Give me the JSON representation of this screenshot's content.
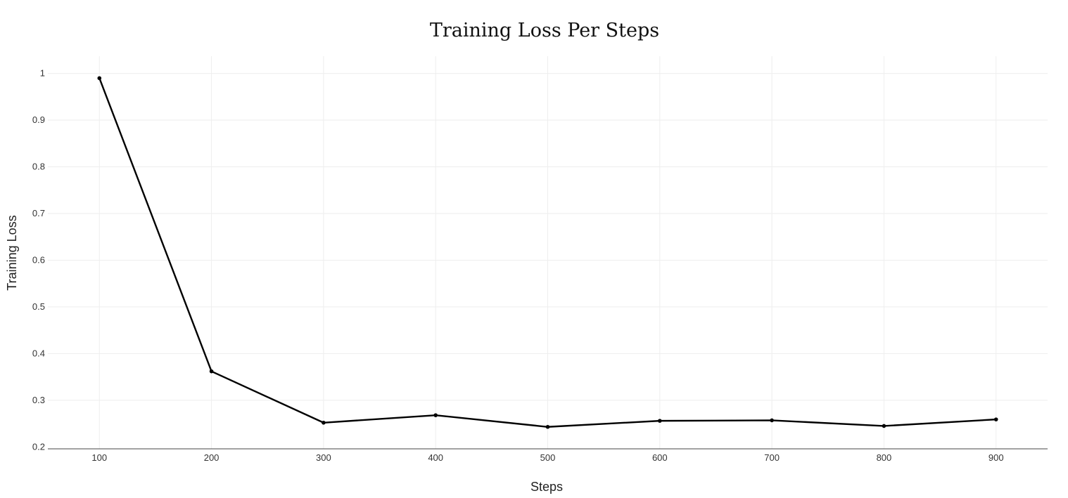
{
  "chart_data": {
    "type": "line",
    "title": "Training Loss Per Steps",
    "xlabel": "Steps",
    "ylabel": "Training Loss",
    "x": [
      100,
      200,
      300,
      400,
      500,
      600,
      700,
      800,
      900
    ],
    "series": [
      {
        "values": [
          0.99,
          0.362,
          0.252,
          0.268,
          0.243,
          0.256,
          0.257,
          0.245,
          0.259
        ]
      }
    ],
    "xticks": [
      100,
      200,
      300,
      400,
      500,
      600,
      700,
      800,
      900
    ],
    "yticks": [
      0.2,
      0.3,
      0.4,
      0.5,
      0.6,
      0.7,
      0.8,
      0.9,
      1
    ],
    "ytick_labels": [
      "0.2",
      "0.3",
      "0.4",
      "0.5",
      "0.6",
      "0.7",
      "0.8",
      "0.9",
      "1"
    ],
    "xlim": [
      54,
      946
    ],
    "ylim": [
      0.196,
      1.037
    ],
    "grid": true,
    "legend": false,
    "line_color": "#000000"
  }
}
